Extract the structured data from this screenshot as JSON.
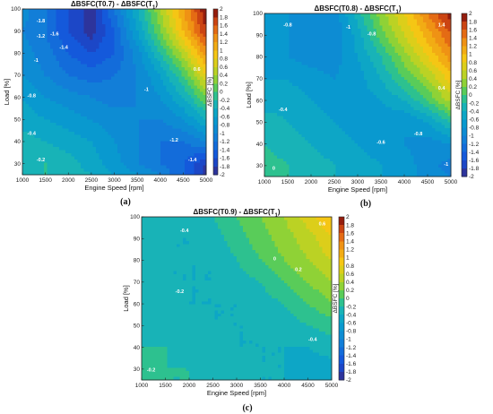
{
  "chart_data": [
    {
      "type": "contour",
      "panel_label": "(a)",
      "title_prefix": "ΔBSFC(T0.7) - ΔBSFC(T",
      "title_sub": "1",
      "title_suffix": ")",
      "xlabel": "Engine Speed [rpm]",
      "ylabel": "Load [%]",
      "colorbar_label": "ΔBSFC [%]",
      "x": [
        1000,
        1500,
        2000,
        2500,
        3000,
        3500,
        4000,
        4500,
        5000
      ],
      "y": [
        25,
        30,
        40,
        50,
        60,
        70,
        80,
        90,
        100
      ],
      "z": [
        [
          -0.2,
          -0.2,
          -0.3,
          -0.4,
          -0.6,
          -0.8,
          -1.0,
          -1.4,
          -1.9
        ],
        [
          -0.3,
          -0.2,
          -0.3,
          -0.5,
          -0.7,
          -1.0,
          -1.2,
          -1.4,
          -1.8
        ],
        [
          -0.3,
          -0.4,
          -0.5,
          -0.6,
          -0.8,
          -1.0,
          -1.2,
          -1.2,
          -1.0
        ],
        [
          -0.5,
          -0.6,
          -0.7,
          -0.8,
          -0.9,
          -1.0,
          -1.0,
          -0.8,
          -0.4
        ],
        [
          -0.6,
          -0.8,
          -0.9,
          -1.0,
          -1.1,
          -1.0,
          -0.8,
          -0.4,
          0.2
        ],
        [
          -0.8,
          -1.0,
          -1.2,
          -1.3,
          -1.2,
          -1.0,
          -0.6,
          0.0,
          0.8
        ],
        [
          -0.9,
          -1.1,
          -1.4,
          -1.6,
          -1.4,
          -0.9,
          -0.2,
          0.5,
          1.3
        ],
        [
          -1.0,
          -1.2,
          -1.6,
          -1.9,
          -1.4,
          -0.6,
          0.2,
          1.0,
          1.8
        ],
        [
          -0.9,
          -1.2,
          -1.6,
          -1.9,
          -1.2,
          -0.4,
          0.4,
          1.2,
          2.0
        ]
      ],
      "clim": [
        -2,
        2
      ],
      "labels": [
        {
          "x": 1400,
          "y": 94,
          "text": "-1.8"
        },
        {
          "x": 1700,
          "y": 88,
          "text": "-1.6"
        },
        {
          "x": 1900,
          "y": 82,
          "text": "-1.4"
        },
        {
          "x": 1400,
          "y": 87,
          "text": "-1.2"
        },
        {
          "x": 1300,
          "y": 76,
          "text": "-1"
        },
        {
          "x": 3700,
          "y": 63,
          "text": "-1"
        },
        {
          "x": 1200,
          "y": 60,
          "text": "-0.8"
        },
        {
          "x": 1200,
          "y": 43,
          "text": "-0.4"
        },
        {
          "x": 1400,
          "y": 31,
          "text": "-0.2"
        },
        {
          "x": 4300,
          "y": 40,
          "text": "-1.2"
        },
        {
          "x": 4700,
          "y": 31,
          "text": "-1.4"
        },
        {
          "x": 4800,
          "y": 72,
          "text": "0.6"
        }
      ]
    },
    {
      "type": "contour",
      "panel_label": "(b)",
      "title_prefix": "ΔBSFC(T0.8) - ΔBSFC(T",
      "title_sub": "1",
      "title_suffix": ")",
      "xlabel": "Engine Speed [rpm]",
      "ylabel": "Load [%]",
      "colorbar_label": "ΔBSFC [%]",
      "x": [
        1000,
        1500,
        2000,
        2500,
        3000,
        3500,
        4000,
        4500,
        5000
      ],
      "y": [
        25,
        30,
        40,
        50,
        60,
        70,
        80,
        90,
        100
      ],
      "z": [
        [
          0.0,
          -0.2,
          -0.3,
          -0.4,
          -0.5,
          -0.6,
          -0.7,
          -0.9,
          -1.0
        ],
        [
          -0.1,
          -0.2,
          -0.3,
          -0.4,
          -0.5,
          -0.6,
          -0.7,
          -0.9,
          -1.1
        ],
        [
          -0.2,
          -0.3,
          -0.4,
          -0.5,
          -0.6,
          -0.7,
          -0.8,
          -0.9,
          -0.8
        ],
        [
          -0.3,
          -0.4,
          -0.5,
          -0.6,
          -0.7,
          -0.7,
          -0.8,
          -0.6,
          -0.2
        ],
        [
          -0.5,
          -0.5,
          -0.6,
          -0.7,
          -0.7,
          -0.6,
          -0.4,
          0.0,
          0.5
        ],
        [
          -0.6,
          -0.6,
          -0.7,
          -0.8,
          -0.7,
          -0.4,
          0.0,
          0.4,
          0.9
        ],
        [
          -0.7,
          -0.8,
          -0.9,
          -0.9,
          -0.6,
          -0.2,
          0.3,
          0.8,
          1.3
        ],
        [
          -0.7,
          -0.8,
          -1.0,
          -1.0,
          -0.5,
          0.1,
          0.6,
          1.1,
          1.6
        ],
        [
          -0.6,
          -0.8,
          -0.9,
          -0.9,
          -0.3,
          0.3,
          0.8,
          1.4,
          1.9
        ]
      ],
      "clim": [
        -2,
        2
      ],
      "labels": [
        {
          "x": 1500,
          "y": 94,
          "text": "-0.8"
        },
        {
          "x": 2800,
          "y": 93,
          "text": "-1"
        },
        {
          "x": 3300,
          "y": 90,
          "text": "-0.8"
        },
        {
          "x": 1400,
          "y": 55,
          "text": "-0.4"
        },
        {
          "x": 1200,
          "y": 28,
          "text": "0"
        },
        {
          "x": 3500,
          "y": 40,
          "text": "-0.6"
        },
        {
          "x": 4300,
          "y": 44,
          "text": "-0.8"
        },
        {
          "x": 4900,
          "y": 30,
          "text": "-1"
        },
        {
          "x": 4800,
          "y": 65,
          "text": "0.4"
        },
        {
          "x": 4800,
          "y": 94,
          "text": "1.4"
        }
      ]
    },
    {
      "type": "contour",
      "panel_label": "(c)",
      "title_prefix": "ΔBSFC(T0.9) - ΔBSFC(T",
      "title_sub": "1",
      "title_suffix": ")",
      "xlabel": "Engine Speed [rpm]",
      "ylabel": "Load [%]",
      "colorbar_label": "ΔBSFC [%]",
      "x": [
        1000,
        1500,
        2000,
        2500,
        3000,
        3500,
        4000,
        4500,
        5000
      ],
      "y": [
        25,
        30,
        40,
        50,
        60,
        70,
        80,
        90,
        100
      ],
      "z": [
        [
          -0.1,
          -0.2,
          -0.2,
          -0.3,
          -0.3,
          -0.4,
          -0.4,
          -0.5,
          -0.5
        ],
        [
          -0.1,
          -0.2,
          -0.2,
          -0.3,
          -0.3,
          -0.4,
          -0.4,
          -0.5,
          -0.5
        ],
        [
          -0.2,
          -0.2,
          -0.3,
          -0.3,
          -0.4,
          -0.4,
          -0.4,
          -0.4,
          -0.3
        ],
        [
          -0.2,
          -0.3,
          -0.3,
          -0.4,
          -0.4,
          -0.4,
          -0.3,
          -0.2,
          -0.1
        ],
        [
          -0.3,
          -0.3,
          -0.4,
          -0.4,
          -0.4,
          -0.3,
          -0.2,
          0.0,
          0.2
        ],
        [
          -0.3,
          -0.4,
          -0.4,
          -0.4,
          -0.3,
          -0.2,
          0.0,
          0.2,
          0.4
        ],
        [
          -0.3,
          -0.4,
          -0.4,
          -0.4,
          -0.2,
          0.0,
          0.2,
          0.4,
          0.6
        ],
        [
          -0.3,
          -0.4,
          -0.4,
          -0.3,
          -0.1,
          0.1,
          0.3,
          0.5,
          0.8
        ],
        [
          -0.3,
          -0.3,
          -0.3,
          -0.2,
          0.0,
          0.2,
          0.4,
          0.7,
          1.0
        ]
      ],
      "clim": [
        -2,
        2
      ],
      "labels": [
        {
          "x": 1900,
          "y": 93,
          "text": "-0.4"
        },
        {
          "x": 1800,
          "y": 65,
          "text": "-0.2"
        },
        {
          "x": 1200,
          "y": 29,
          "text": "-0.2"
        },
        {
          "x": 3800,
          "y": 80,
          "text": "0"
        },
        {
          "x": 4300,
          "y": 75,
          "text": "0.2"
        },
        {
          "x": 4800,
          "y": 96,
          "text": "0.6"
        },
        {
          "x": 4600,
          "y": 43,
          "text": "-0.4"
        }
      ]
    }
  ],
  "colorbar_ticks": [
    "2",
    "1.8",
    "1.6",
    "1.4",
    "1.2",
    "1",
    "0.8",
    "0.6",
    "0.4",
    "0.2",
    "0",
    "-0.2",
    "-0.4",
    "-0.6",
    "-0.8",
    "-1",
    "-1.2",
    "-1.4",
    "-1.6",
    "-1.8",
    "-2"
  ],
  "x_ticks": [
    "1000",
    "1500",
    "2000",
    "2500",
    "3000",
    "3500",
    "4000",
    "4500",
    "5000"
  ],
  "y_ticks": [
    "30",
    "40",
    "50",
    "60",
    "70",
    "80",
    "90",
    "100"
  ]
}
